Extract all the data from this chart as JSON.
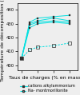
{
  "xlabel": "Taux de charges (% en masse)",
  "ylabel": "Température de décomposition (°C)",
  "ylim": [
    396,
    445
  ],
  "xlim": [
    -0.25,
    3.5
  ],
  "yticks": [
    400,
    410,
    420,
    430,
    440
  ],
  "xticks": [
    0,
    1,
    2,
    3
  ],
  "alk_x": [
    0,
    0.5,
    1,
    2,
    3
  ],
  "alk_y_sets": [
    [
      405,
      431,
      434,
      435,
      436
    ],
    [
      405,
      430,
      432,
      434,
      432
    ],
    [
      405,
      429,
      431,
      432,
      431
    ],
    [
      405,
      427,
      430,
      431,
      430
    ]
  ],
  "na_x": [
    0,
    0.5,
    1,
    2,
    3
  ],
  "na_y": [
    405,
    411,
    413,
    414,
    416
  ],
  "line_color": "#00e0e0",
  "marker_filled_color": "#303030",
  "background_color": "#eeeeee",
  "legend_labels": [
    "cations alkylammonium",
    "Na- montmorillonite"
  ],
  "font_size": 4.5,
  "tick_font_size": 3.8
}
